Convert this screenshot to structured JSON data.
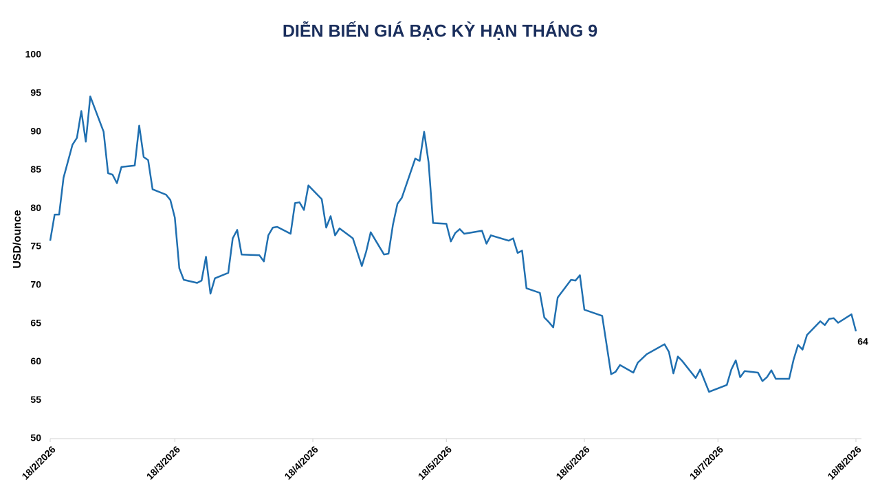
{
  "chart_data": {
    "type": "line",
    "title": "DIỄN BIẾN GIÁ BẠC KỲ HẠN THÁNG 9",
    "y_label": "USD/ounce",
    "x": [
      "2026-02-18",
      "2026-02-19",
      "2026-02-20",
      "2026-02-21",
      "2026-02-23",
      "2026-02-24",
      "2026-02-25",
      "2026-02-26",
      "2026-02-27",
      "2026-03-02",
      "2026-03-03",
      "2026-03-04",
      "2026-03-05",
      "2026-03-06",
      "2026-03-09",
      "2026-03-10",
      "2026-03-11",
      "2026-03-12",
      "2026-03-13",
      "2026-03-16",
      "2026-03-17",
      "2026-03-18",
      "2026-03-19",
      "2026-03-20",
      "2026-03-23",
      "2026-03-24",
      "2026-03-25",
      "2026-03-26",
      "2026-03-27",
      "2026-03-30",
      "2026-03-31",
      "2026-04-01",
      "2026-04-02",
      "2026-04-06",
      "2026-04-07",
      "2026-04-08",
      "2026-04-09",
      "2026-04-10",
      "2026-04-13",
      "2026-04-14",
      "2026-04-15",
      "2026-04-16",
      "2026-04-17",
      "2026-04-20",
      "2026-04-21",
      "2026-04-22",
      "2026-04-23",
      "2026-04-24",
      "2026-04-27",
      "2026-04-29",
      "2026-04-30",
      "2026-05-01",
      "2026-05-04",
      "2026-05-05",
      "2026-05-06",
      "2026-05-07",
      "2026-05-08",
      "2026-05-11",
      "2026-05-12",
      "2026-05-13",
      "2026-05-14",
      "2026-05-15",
      "2026-05-18",
      "2026-05-19",
      "2026-05-20",
      "2026-05-21",
      "2026-05-22",
      "2026-05-26",
      "2026-05-27",
      "2026-05-28",
      "2026-06-01",
      "2026-06-02",
      "2026-06-03",
      "2026-06-04",
      "2026-06-05",
      "2026-06-08",
      "2026-06-09",
      "2026-06-10",
      "2026-06-11",
      "2026-06-12",
      "2026-06-15",
      "2026-06-16",
      "2026-06-17",
      "2026-06-18",
      "2026-06-22",
      "2026-06-24",
      "2026-06-25",
      "2026-06-26",
      "2026-06-29",
      "2026-06-30",
      "2026-07-02",
      "2026-07-06",
      "2026-07-07",
      "2026-07-08",
      "2026-07-09",
      "2026-07-10",
      "2026-07-13",
      "2026-07-14",
      "2026-07-16",
      "2026-07-20",
      "2026-07-21",
      "2026-07-22",
      "2026-07-23",
      "2026-07-24",
      "2026-07-27",
      "2026-07-28",
      "2026-07-29",
      "2026-07-30",
      "2026-07-31",
      "2026-08-03",
      "2026-08-04",
      "2026-08-05",
      "2026-08-06",
      "2026-08-07",
      "2026-08-10",
      "2026-08-11",
      "2026-08-12",
      "2026-08-13",
      "2026-08-14",
      "2026-08-17",
      "2026-08-18"
    ],
    "series": [
      {
        "name": "Giá bạc",
        "color": "#1f6fb0",
        "label_last": true,
        "values": [
          75.8,
          79.2,
          79.2,
          84.0,
          88.3,
          89.2,
          92.7,
          88.7,
          94.6,
          90.0,
          84.6,
          84.4,
          83.3,
          85.4,
          85.6,
          90.8,
          86.7,
          86.3,
          82.5,
          81.8,
          81.1,
          78.8,
          72.2,
          70.7,
          70.3,
          70.6,
          73.7,
          68.9,
          70.9,
          71.6,
          76.1,
          77.2,
          74.0,
          73.9,
          73.1,
          76.5,
          77.5,
          77.6,
          76.7,
          80.7,
          80.8,
          79.8,
          83.0,
          81.2,
          77.5,
          79.0,
          76.5,
          77.4,
          76.1,
          72.5,
          74.4,
          76.9,
          74.0,
          74.1,
          77.9,
          80.6,
          81.4,
          86.5,
          86.2,
          90.0,
          86.0,
          78.1,
          78.0,
          75.7,
          76.8,
          77.3,
          76.7,
          77.1,
          75.4,
          76.5,
          75.8,
          76.1,
          74.2,
          74.5,
          69.6,
          69.0,
          65.8,
          65.2,
          64.5,
          68.4,
          70.7,
          70.6,
          71.3,
          66.8,
          66.0,
          58.4,
          58.7,
          59.6,
          58.6,
          59.9,
          61.0,
          62.3,
          61.3,
          58.5,
          60.7,
          60.1,
          57.9,
          59.0,
          56.1,
          57.0,
          59.0,
          60.2,
          58.0,
          58.8,
          58.6,
          57.5,
          58.0,
          58.9,
          57.8,
          57.8,
          60.3,
          62.2,
          61.6,
          63.5,
          65.3,
          64.8,
          65.6,
          65.7,
          65.1,
          66.2,
          64
        ]
      }
    ],
    "xlim": [
      "2026-02-18",
      "2026-08-18"
    ],
    "xticks": [
      {
        "value": "2026-02-18",
        "label": "18/2/2026"
      },
      {
        "value": "2026-03-18",
        "label": "18/3/2026"
      },
      {
        "value": "2026-04-18",
        "label": "18/4/2026"
      },
      {
        "value": "2026-05-18",
        "label": "18/5/2026"
      },
      {
        "value": "2026-06-18",
        "label": "18/6/2026"
      },
      {
        "value": "2026-07-18",
        "label": "18/7/2026"
      },
      {
        "value": "2026-08-18",
        "label": "18/8/2026"
      }
    ],
    "ylim": [
      50,
      100
    ],
    "yticks": [
      50,
      55,
      60,
      65,
      70,
      75,
      80,
      85,
      90,
      95,
      100
    ],
    "grid": false
  }
}
